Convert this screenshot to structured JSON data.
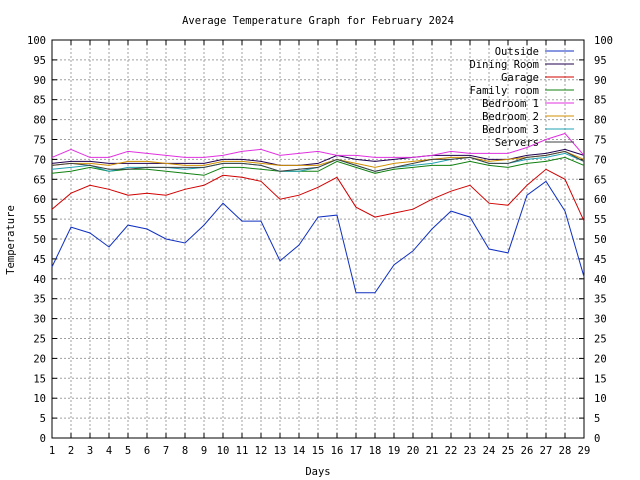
{
  "chart_data": {
    "type": "line",
    "title": "Average Temperature Graph for February 2024",
    "xlabel": "Days",
    "ylabel": "Temperature",
    "xlim": [
      1,
      29
    ],
    "ylim": [
      0,
      100
    ],
    "y_tick_step": 5,
    "grid": true,
    "legend_position": "top-right",
    "x": [
      1,
      2,
      3,
      4,
      5,
      6,
      7,
      8,
      9,
      10,
      11,
      12,
      13,
      14,
      15,
      16,
      17,
      18,
      19,
      20,
      21,
      22,
      23,
      24,
      25,
      26,
      27,
      28,
      29
    ],
    "series": [
      {
        "name": "Outside",
        "color": "#1030c0",
        "values": [
          43,
          53,
          51.5,
          48,
          53.5,
          52.5,
          50,
          49,
          53.5,
          59,
          54.5,
          54.5,
          44.5,
          48.5,
          55.5,
          56,
          36.5,
          36.5,
          43.5,
          47,
          52.5,
          57,
          55.5,
          47.5,
          46.5,
          61,
          64.5,
          57,
          40.5
        ]
      },
      {
        "name": "Dining Room",
        "color": "#200050",
        "values": [
          69,
          69.5,
          69.5,
          69,
          69,
          69,
          69,
          69,
          69,
          70,
          70,
          69.5,
          68.5,
          68.5,
          69,
          71,
          70,
          69.5,
          70,
          70.5,
          71,
          71,
          71,
          70,
          70,
          71,
          71.5,
          72.5,
          71
        ]
      },
      {
        "name": "Garage",
        "color": "#d00000",
        "values": [
          57.5,
          61.5,
          63.5,
          62.5,
          61,
          61.5,
          61,
          62.5,
          63.5,
          66,
          65.5,
          64.5,
          60,
          61,
          63,
          65.5,
          58,
          55.5,
          56.5,
          57.5,
          60,
          62,
          63.5,
          59,
          58.5,
          63.5,
          67.5,
          65,
          54.5
        ]
      },
      {
        "name": "Family room",
        "color": "#108010",
        "values": [
          66.5,
          67,
          68,
          67,
          67.5,
          67.5,
          67,
          66.5,
          66,
          68,
          68,
          67.5,
          67,
          67,
          67,
          69.5,
          68,
          66.5,
          67.5,
          68,
          68.5,
          68.5,
          69.5,
          68.5,
          68,
          69,
          69.5,
          70.5,
          68.5
        ]
      },
      {
        "name": "Bedroom 1",
        "color": "#e030e0",
        "values": [
          70.5,
          72.5,
          70.5,
          70.5,
          72,
          71.5,
          71,
          70.5,
          70.5,
          71,
          72,
          72.5,
          71,
          71.5,
          72,
          71,
          71,
          70.5,
          70.5,
          70.5,
          71,
          72,
          71.5,
          71.5,
          71.5,
          73,
          75,
          76.5,
          71
        ]
      },
      {
        "name": "Bedroom 2",
        "color": "#d09000",
        "values": [
          68.5,
          69,
          69,
          68.5,
          69.5,
          69.5,
          69,
          68.5,
          68.5,
          69.5,
          69.5,
          69,
          68.5,
          68.5,
          68.5,
          70,
          69,
          68,
          69,
          69.5,
          70,
          70.5,
          70.5,
          69.5,
          70,
          70.5,
          71,
          72,
          70
        ]
      },
      {
        "name": "Bedroom 3",
        "color": "#20a0b0",
        "values": [
          67.5,
          68,
          68.5,
          67,
          68,
          68,
          68,
          67.5,
          68,
          69,
          69,
          68.5,
          67,
          67,
          68,
          70,
          68.5,
          67,
          68,
          68.5,
          69,
          70,
          70.5,
          69,
          69,
          70,
          70.5,
          71.5,
          69.5
        ]
      },
      {
        "name": "Servers",
        "color": "#404040",
        "values": [
          68.5,
          69,
          68.5,
          67.5,
          67.5,
          68,
          68,
          68,
          68,
          69,
          69,
          68.5,
          67,
          67.5,
          68,
          70,
          68.5,
          67,
          68,
          69,
          70,
          70,
          70.5,
          69,
          69,
          70.5,
          71,
          72,
          69.5
        ]
      }
    ]
  }
}
